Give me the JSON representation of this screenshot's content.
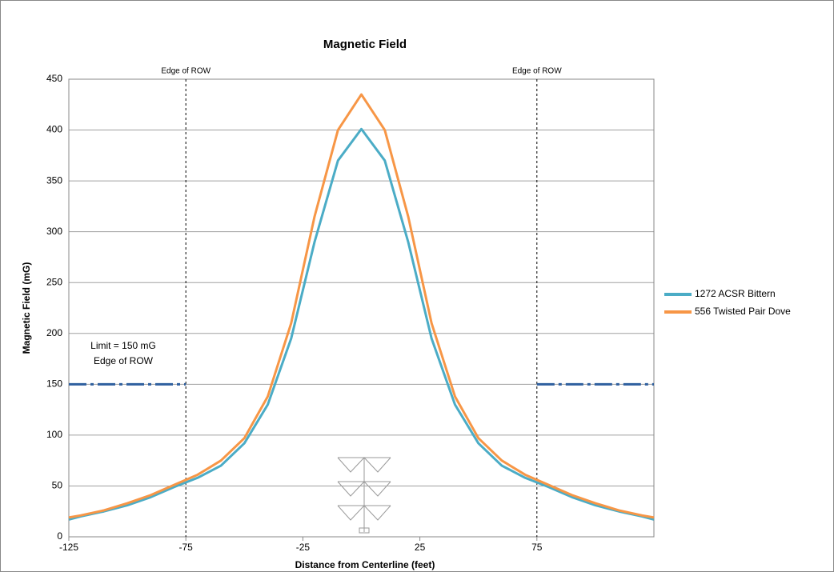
{
  "chart_data": {
    "type": "line",
    "title": "Magnetic Field",
    "x_label": "Distance from Centerline (feet)",
    "y_label": "Magnetic Field (mG)",
    "x": [
      -125,
      -120,
      -110,
      -100,
      -90,
      -80,
      -70,
      -60,
      -50,
      -40,
      -30,
      -20,
      -10,
      0,
      10,
      20,
      30,
      40,
      50,
      60,
      70,
      80,
      90,
      100,
      110,
      120,
      125
    ],
    "series": [
      {
        "name": "1272 ACSR Bittern",
        "color": "#4bacc6",
        "values": [
          17,
          20,
          25,
          31,
          39,
          49,
          58,
          70,
          92,
          130,
          195,
          290,
          370,
          401,
          370,
          290,
          195,
          130,
          92,
          70,
          58,
          49,
          39,
          31,
          25,
          20,
          17
        ]
      },
      {
        "name": "556 Twisted Pair Dove",
        "color": "#f79646",
        "values": [
          19,
          21,
          26,
          33,
          41,
          51,
          61,
          75,
          97,
          138,
          210,
          315,
          400,
          435,
          400,
          315,
          210,
          138,
          97,
          75,
          61,
          51,
          41,
          33,
          26,
          21,
          19
        ]
      }
    ],
    "limit": {
      "value": 150,
      "ranges": [
        [
          -125,
          -75
        ],
        [
          75,
          125
        ]
      ],
      "color": "#2e5f9e"
    },
    "annotation": [
      "Limit  = 150 mG",
      "Edge of ROW"
    ],
    "vlines": [
      {
        "x": -75,
        "label": "Edge of ROW"
      },
      {
        "x": 75,
        "label": "Edge of ROW"
      }
    ],
    "xlim": [
      -125,
      125
    ],
    "xticks": [
      -125,
      -75,
      -25,
      25,
      75
    ],
    "ylim": [
      0,
      450
    ],
    "yticks": [
      0,
      50,
      100,
      150,
      200,
      250,
      300,
      350,
      400,
      450
    ],
    "grid": true
  }
}
